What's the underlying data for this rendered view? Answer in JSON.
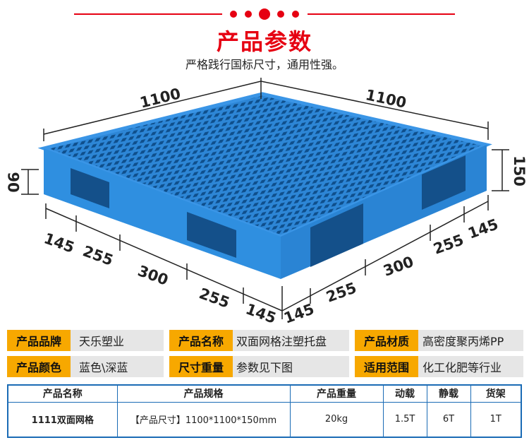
{
  "header": {
    "title": "产品参数",
    "subtitle": "严格践行国标尺寸，通用性强。",
    "accent": "#e60012"
  },
  "dimensions": {
    "length_top_left": "1100",
    "length_top_right": "1100",
    "height_left": "90",
    "height_right": "150",
    "bottom_left": [
      "145",
      "255",
      "300",
      "255",
      "145"
    ],
    "bottom_right": [
      "145",
      "255",
      "300",
      "255",
      "145"
    ]
  },
  "product_color": "#2f8fe0",
  "specs": [
    {
      "label": "产品品牌",
      "value": "天乐塑业"
    },
    {
      "label": "产品名称",
      "value": "双面网格注塑托盘"
    },
    {
      "label": "产品材质",
      "value": "高密度聚丙烯PP"
    },
    {
      "label": "产品颜色",
      "value": "蓝色\\深蓝"
    },
    {
      "label": "尺寸重量",
      "value": "参数见下图"
    },
    {
      "label": "适用范围",
      "value": "化工化肥等行业"
    }
  ],
  "table": {
    "headers": [
      "产品名称",
      "产品规格",
      "产品重量",
      "动载",
      "静载",
      "货架"
    ],
    "rows": [
      [
        "1111双面网格",
        "【产品尺寸】1100*1100*150mm",
        "20kg",
        "1.5T",
        "6T",
        "1T"
      ]
    ]
  }
}
